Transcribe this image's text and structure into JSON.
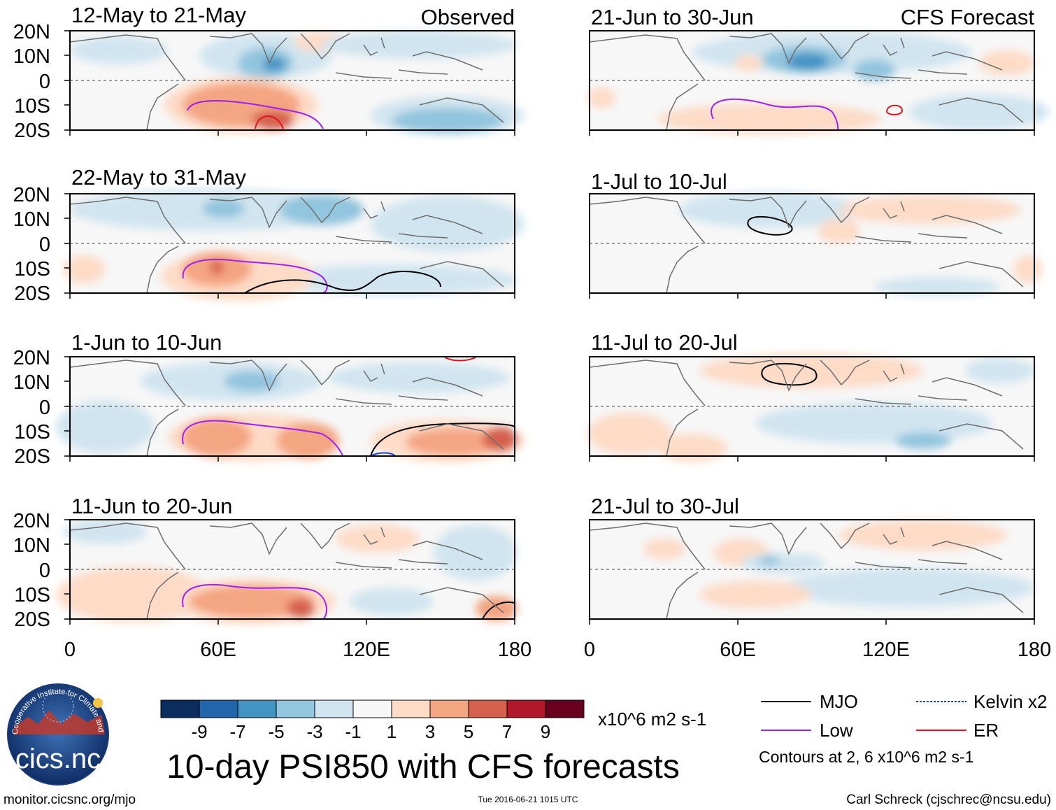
{
  "labels": {
    "observed": "Observed",
    "forecast": "CFS Forecast",
    "main_title": "10-day PSI850 with CFS forecasts",
    "units": "x10^6 m2 s-1",
    "contours_note": "Contours at 2, 6 x10^6 m2 s-1",
    "footer_left": "monitor.cicsnc.org/mjo",
    "footer_center": "Tue 2016-06-21 1015 UTC",
    "footer_right": "Carl Schreck (cjschrec@ncsu.edu)",
    "logo": "cics.nc",
    "logo_ring": "Cooperative Institute for Climate and Satellites"
  },
  "axes": {
    "lat_ticks": [
      "20N",
      "10N",
      "0",
      "10S",
      "20S"
    ],
    "lon_ticks": [
      "0",
      "60E",
      "120E",
      "180"
    ]
  },
  "panels": {
    "left": [
      {
        "title": "12-May to 21-May"
      },
      {
        "title": "22-May to 31-May"
      },
      {
        "title": "1-Jun to 10-Jun"
      },
      {
        "title": "11-Jun to 20-Jun"
      }
    ],
    "right": [
      {
        "title": "21-Jun to 30-Jun"
      },
      {
        "title": "1-Jul to 10-Jul"
      },
      {
        "title": "11-Jul to 20-Jul"
      },
      {
        "title": "21-Jul to 30-Jul"
      }
    ]
  },
  "colorbar": {
    "colors": [
      "#0d2c5e",
      "#2166ac",
      "#4393c3",
      "#92c5de",
      "#d1e5f0",
      "#f7f7f7",
      "#fddbc7",
      "#f4a582",
      "#d6604d",
      "#b2182b",
      "#67001f"
    ],
    "labels": [
      "-9",
      "-7",
      "-5",
      "-3",
      "-1",
      "1",
      "3",
      "5",
      "7",
      "9"
    ]
  },
  "legend": [
    {
      "label": "MJO",
      "color": "#000000"
    },
    {
      "label": "Kelvin x2",
      "color": "#1f3fd6"
    },
    {
      "label": "Low",
      "color": "#a020f0"
    },
    {
      "label": "ER",
      "color": "#e0141e"
    }
  ],
  "colors": {
    "land": "#6e6e6e",
    "equator": "#666666"
  }
}
